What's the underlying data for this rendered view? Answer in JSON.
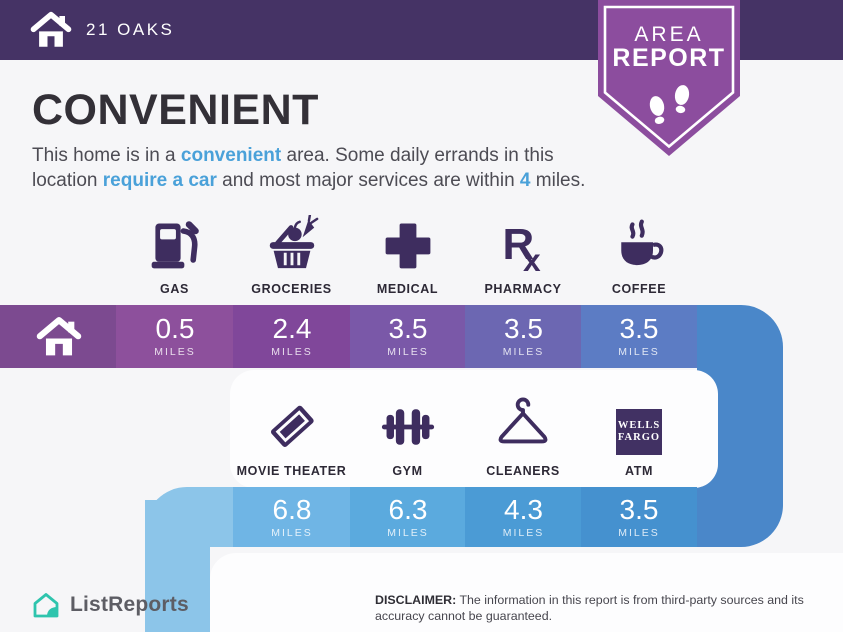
{
  "header": {
    "property_name": "21 OAKS"
  },
  "badge": {
    "top": "AREA",
    "bottom": "REPORT"
  },
  "intro": {
    "title": "CONVENIENT",
    "description": [
      {
        "t": "This home is in a "
      },
      {
        "t": "convenient",
        "hl": true
      },
      {
        "t": " area. Some daily errands in this location "
      },
      {
        "t": "require a car",
        "hl": true
      },
      {
        "t": " and most major services are within "
      },
      {
        "t": "4",
        "hl": true
      },
      {
        "t": " miles."
      }
    ]
  },
  "amenities_row1": [
    {
      "label": "GAS",
      "icon": "gas-pump-icon",
      "distance": "0.5",
      "unit": "MILES"
    },
    {
      "label": "GROCERIES",
      "icon": "grocery-basket-icon",
      "distance": "2.4",
      "unit": "MILES"
    },
    {
      "label": "MEDICAL",
      "icon": "medical-cross-icon",
      "distance": "3.5",
      "unit": "MILES"
    },
    {
      "label": "PHARMACY",
      "icon": "rx-icon",
      "distance": "3.5",
      "unit": "MILES"
    },
    {
      "label": "COFFEE",
      "icon": "coffee-cup-icon",
      "distance": "3.5",
      "unit": "MILES"
    }
  ],
  "amenities_row2": [
    {
      "label": "MOVIE THEATER",
      "icon": "movie-ticket-icon",
      "distance": "6.8",
      "unit": "MILES"
    },
    {
      "label": "GYM",
      "icon": "dumbbell-icon",
      "distance": "6.3",
      "unit": "MILES"
    },
    {
      "label": "CLEANERS",
      "icon": "hanger-icon",
      "distance": "4.3",
      "unit": "MILES"
    },
    {
      "label": "ATM",
      "icon": "wells-fargo-logo",
      "distance": "3.5",
      "unit": "MILES",
      "logo_lines": [
        "WELLS",
        "FARGO"
      ]
    }
  ],
  "icons": {
    "pharmacy_r": "R",
    "pharmacy_x": "x"
  },
  "footer": {
    "brand": "ListReports",
    "disclaimer_label": "DISCLAIMER:",
    "disclaimer_text": " The information in this report is from third-party sources and its accuracy cannot be guaranteed."
  },
  "colors": {
    "header_bg": "#453365",
    "badge_purple": "#8c4d9e",
    "icon_purple": "#3e2d5f",
    "accent_blue": "#4aa1d9",
    "page_bg": "#f6f6f8",
    "card_bg": "#fdfdfe",
    "brand_teal": "#2ec4ad",
    "band1_home": "#7c4a90",
    "band1": [
      "#8d509c",
      "#80479a",
      "#7a58a8",
      "#6c67b2",
      "#5c7cc4"
    ],
    "band1_corner": "#4a87c9",
    "band2_cap": "#8cc5e9",
    "band2": [
      "#6fb5e5",
      "#5baade",
      "#4b9bd5",
      "#4591cf"
    ]
  }
}
